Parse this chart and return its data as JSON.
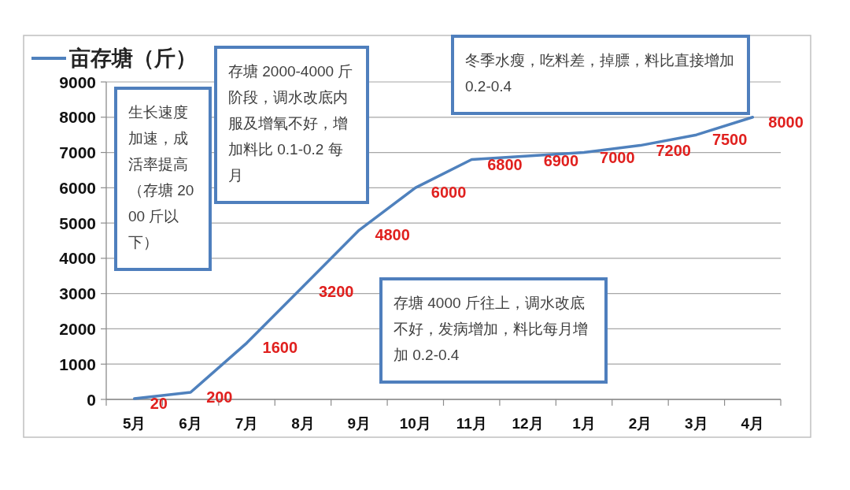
{
  "chart_data": {
    "type": "line",
    "categories": [
      "5月",
      "6月",
      "7月",
      "8月",
      "9月",
      "10月",
      "11月",
      "12月",
      "1月",
      "2月",
      "3月",
      "4月"
    ],
    "series": [
      {
        "name": "亩存塘（斤）",
        "color": "#4f81bd",
        "values": [
          20,
          200,
          1600,
          3200,
          4800,
          6000,
          6800,
          6900,
          7000,
          7200,
          7500,
          8000
        ]
      }
    ],
    "ylim": [
      0,
      9000
    ],
    "yticks": [
      0,
      1000,
      2000,
      3000,
      4000,
      5000,
      6000,
      7000,
      8000,
      9000
    ],
    "grid": "y",
    "legend": "top left",
    "data_labels": true,
    "annotations": [
      "生长速度加速，成活率提高（存塘 2000 斤以下）",
      "存塘 2000-4000 斤阶段，调水改底内服及增氧不好，增加料比 0.1-0.2 每月",
      "冬季水瘦，吃料差，掉膘，料比直接增加 0.2-0.4",
      "存塘 4000 斤往上，调水改底不好，发病增加，料比每月增加 0.2-0.4"
    ]
  }
}
